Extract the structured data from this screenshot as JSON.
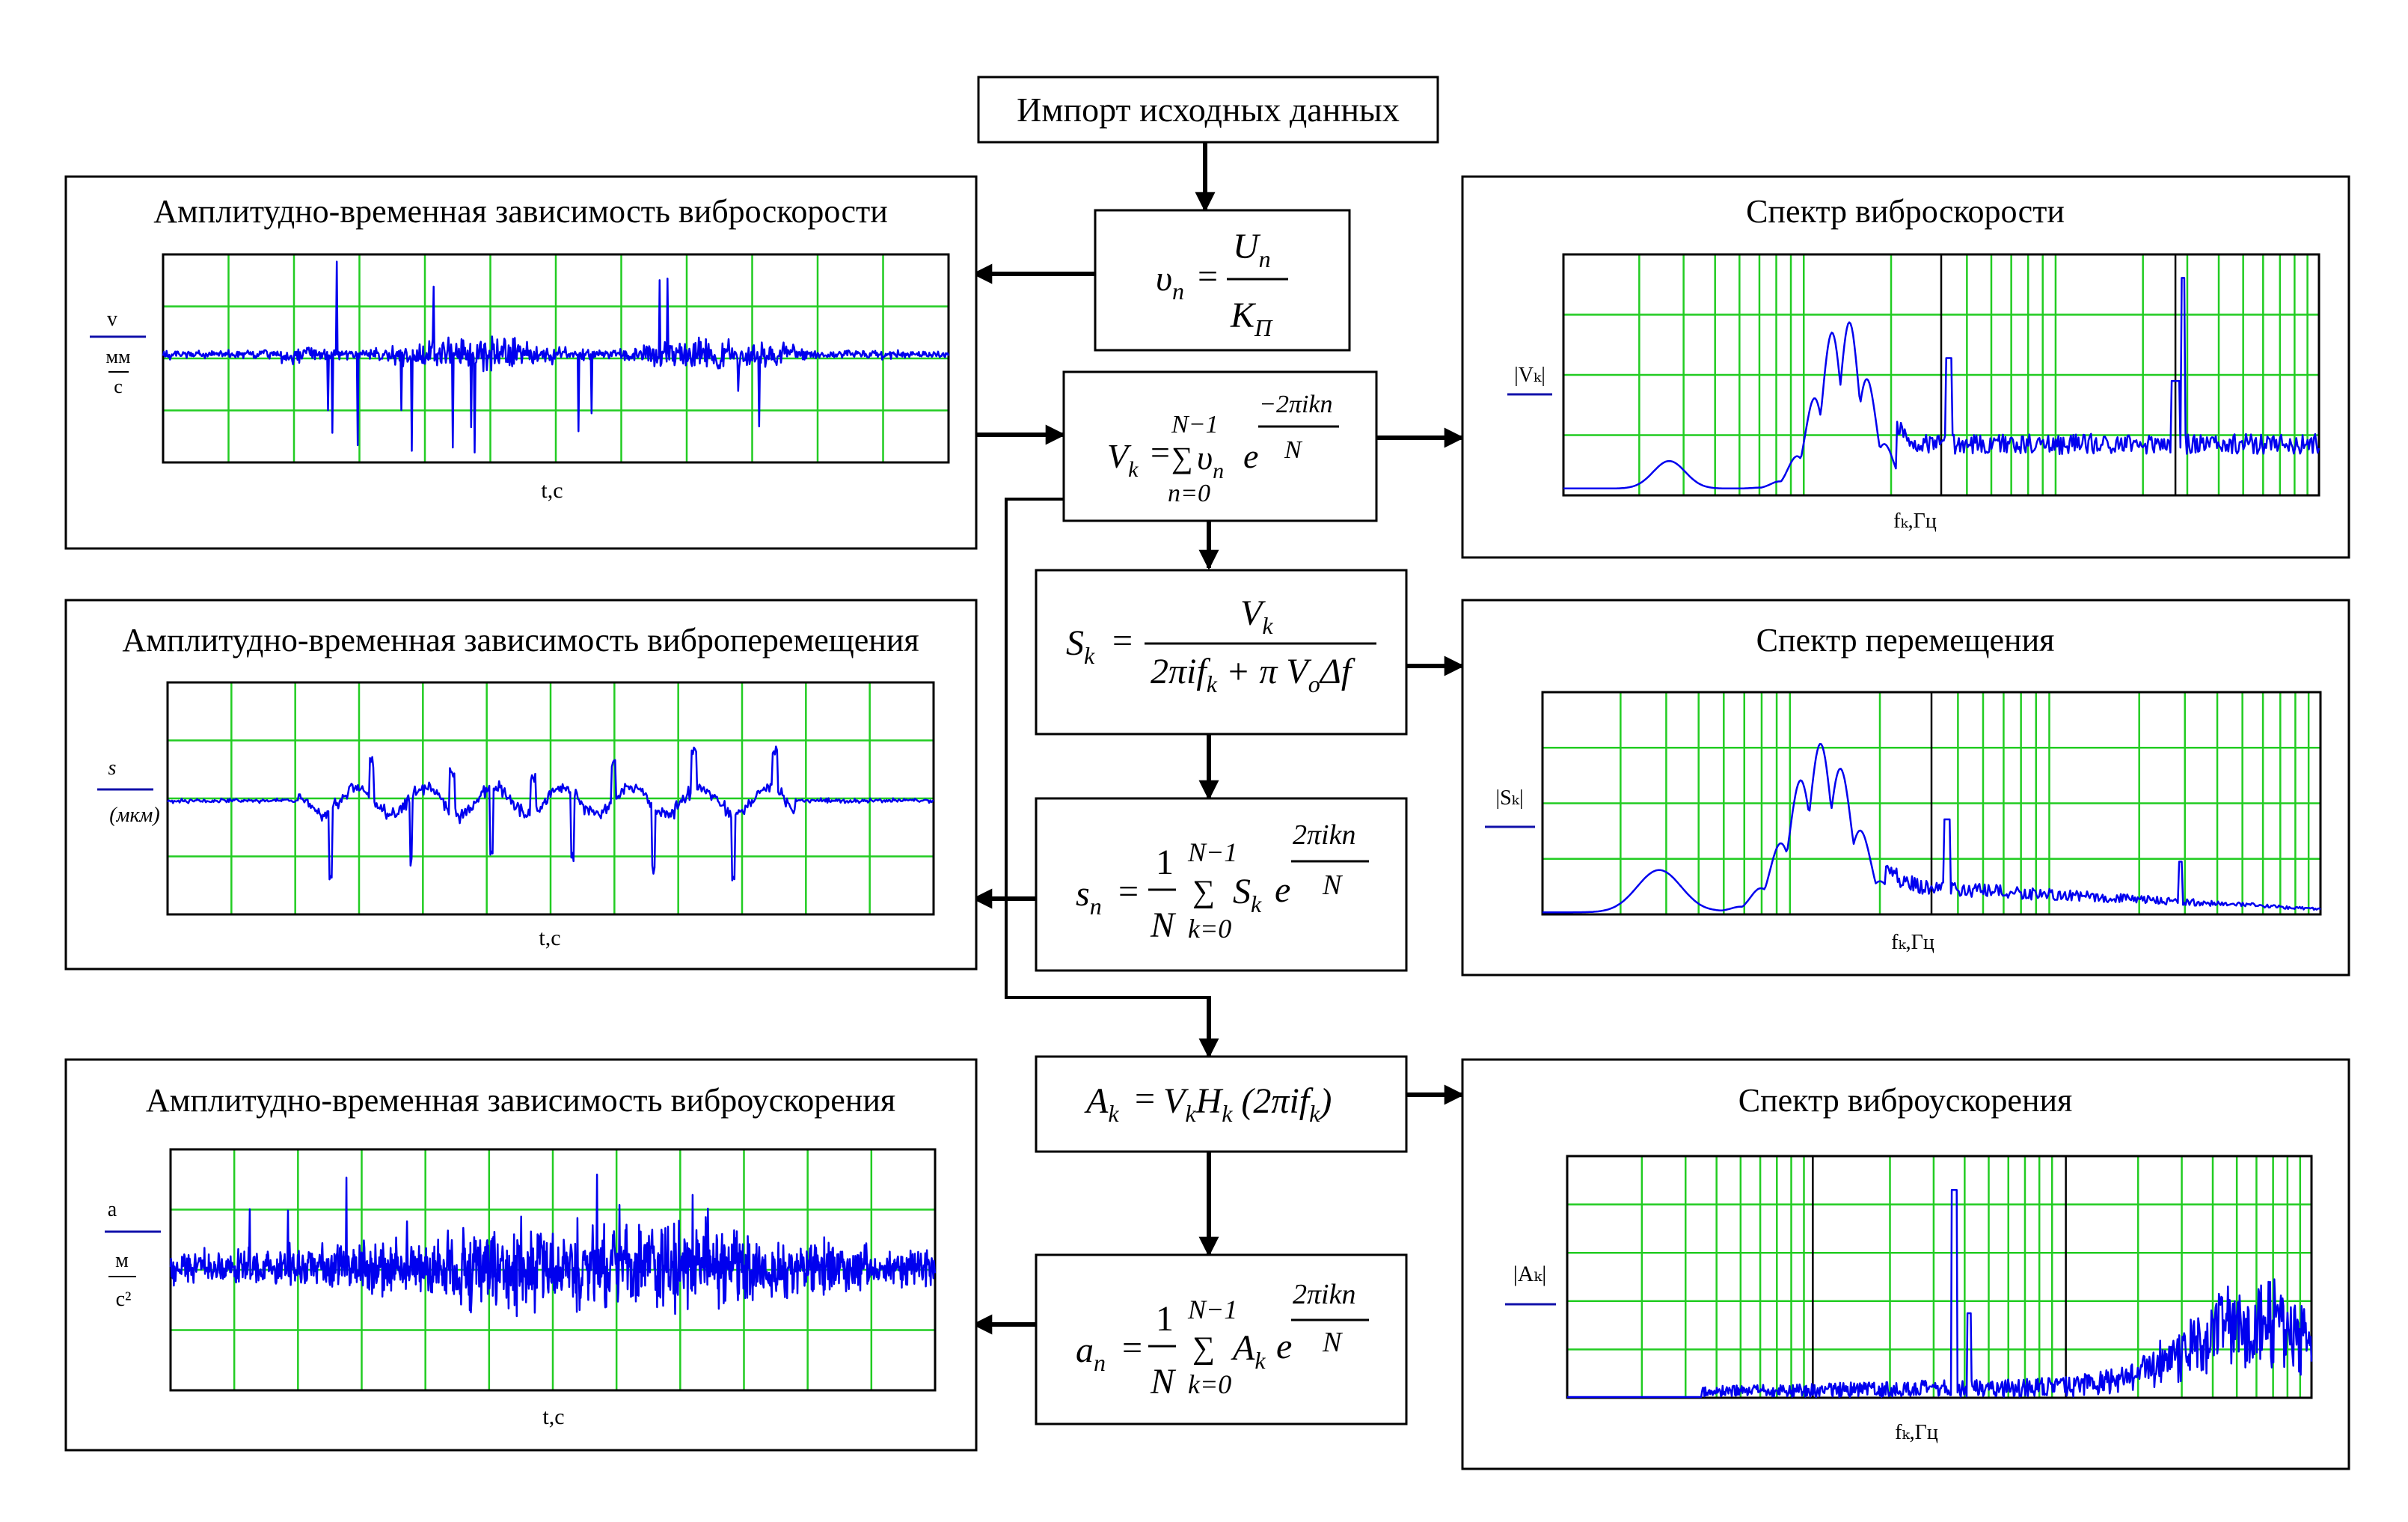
{
  "colors": {
    "frame": "#000000",
    "grid": "#22cc22",
    "signal": "#0000ee",
    "axisText": "#1010aa",
    "background": "#ffffff"
  },
  "top_box": "Импорт исходных данных",
  "panels": {
    "velocity_time": {
      "title": "Амплитудно-временная зависимость виброскорости",
      "ylabel": [
        "v",
        "мм",
        "с"
      ],
      "xlabel": "t,c"
    },
    "displacement_time": {
      "title": "Амплитудно-временная зависимость виброперемещения",
      "ylabel": [
        "s",
        "(мкм)"
      ],
      "xlabel": "t,c"
    },
    "acceleration_time": {
      "title": "Амплитудно-временная зависимость виброускорения",
      "ylabel": [
        "a",
        "м",
        "c²"
      ],
      "xlabel": "t,c"
    },
    "velocity_spectrum": {
      "title": "Спектр виброскорости",
      "ylabel": "|Vₖ|",
      "xlabel": "fₖ,Гц"
    },
    "displacement_spectrum": {
      "title": "Спектр перемещения",
      "ylabel": "|Sₖ|",
      "xlabel": "fₖ,Гц"
    },
    "acceleration_spectrum": {
      "title": "Спектр виброускорения",
      "ylabel": "|Aₖ|",
      "xlabel": "fₖ,Гц"
    }
  },
  "formulas": {
    "f1": {
      "lhs": "υ",
      "lhs_sub": "n",
      "eq": "=",
      "num": "U",
      "num_sub": "n",
      "den": "K",
      "den_sub": "П"
    },
    "f2": {
      "lhs": "V",
      "lhs_sub": "k",
      "eq": "=",
      "upper": "N−1",
      "sum": "∑",
      "lower": "n=0",
      "term": "υ",
      "term_sub": "n",
      "exp_base": "e",
      "exp_num": "−2πikn",
      "exp_den": "N"
    },
    "f3": {
      "lhs": "S",
      "lhs_sub": "k",
      "eq": "=",
      "num": "V",
      "num_sub": "k",
      "den_a": "2πif",
      "den_a_sub": "k",
      "den_b": " + π V",
      "den_b_sub": "o",
      "den_c": "Δf"
    },
    "f4": {
      "lhs": "s",
      "lhs_sub": "n",
      "eq": "=",
      "frac_num": "1",
      "frac_den": "N",
      "upper": "N−1",
      "sum": "∑",
      "lower": "k=0",
      "term": "S",
      "term_sub": "k",
      "exp_base": "e",
      "exp_num": "2πikn",
      "exp_den": "N"
    },
    "f5": {
      "lhs": "A",
      "lhs_sub": "k",
      "eq": "=",
      "a": "V",
      "a_sub": "k",
      "b": "H",
      "b_sub": "k",
      "c": "(2πif",
      "c_sub": "k",
      "d": ")"
    },
    "f6": {
      "lhs": "a",
      "lhs_sub": "n",
      "eq": "=",
      "frac_num": "1",
      "frac_den": "N",
      "upper": "N−1",
      "sum": "∑",
      "lower": "k=0",
      "term": "A",
      "term_sub": "k",
      "exp_base": "e",
      "exp_num": "2πikn",
      "exp_den": "N"
    }
  }
}
